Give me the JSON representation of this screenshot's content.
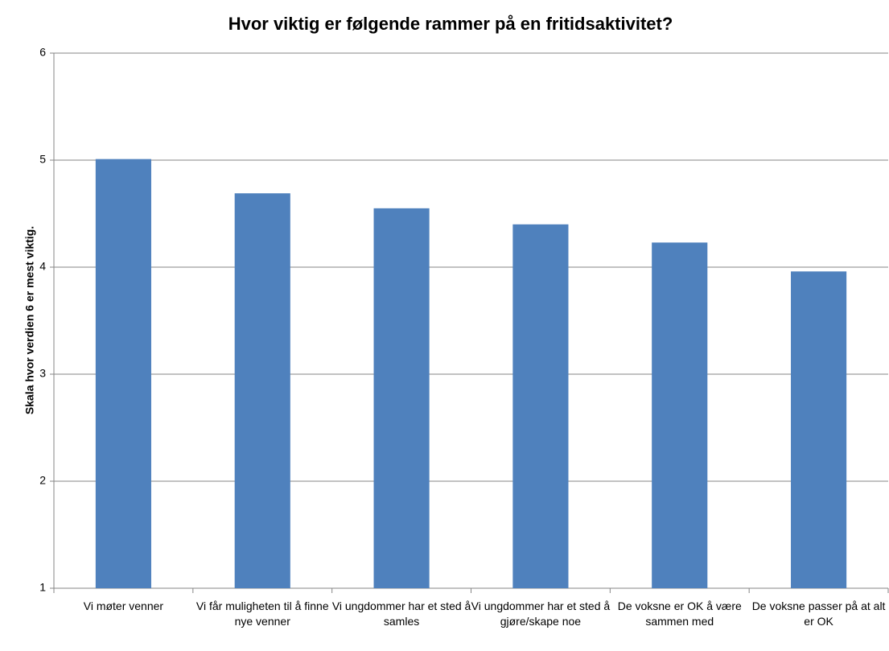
{
  "chart_data": {
    "type": "bar",
    "title": "Hvor viktig er følgende rammer på en fritidsaktivitet?",
    "y_label": "Skala hvor verdien 6 er mest viktig.",
    "categories": [
      "Vi møter venner",
      "Vi får muligheten til å finne nye venner",
      "Vi ungdommer har et sted å samles",
      "Vi ungdommer har et sted å gjøre/skape noe",
      "De voksne er OK å være sammen med",
      "De voksne passer på at alt er OK"
    ],
    "values": [
      5.01,
      4.69,
      4.55,
      4.4,
      4.23,
      3.96
    ],
    "color": "#4f81bd",
    "ylim": [
      1,
      6
    ],
    "yticks": [
      1,
      2,
      3,
      4,
      5,
      6
    ],
    "grid": true
  }
}
